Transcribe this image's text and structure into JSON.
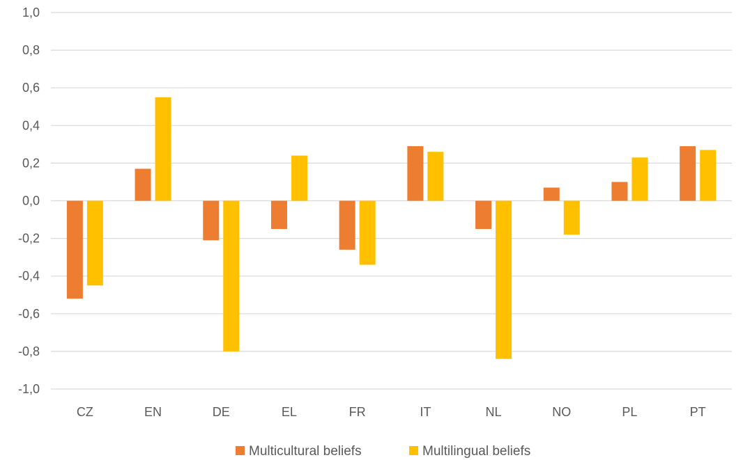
{
  "chart_data": {
    "type": "bar",
    "categories": [
      "CZ",
      "EN",
      "DE",
      "EL",
      "FR",
      "IT",
      "NL",
      "NO",
      "PL",
      "PT"
    ],
    "series": [
      {
        "name": "Multicultural beliefs",
        "color": "#ED7D31",
        "values": [
          -0.52,
          0.17,
          -0.21,
          -0.15,
          -0.26,
          0.29,
          -0.15,
          0.07,
          0.1,
          0.29
        ]
      },
      {
        "name": "Multilingual beliefs",
        "color": "#FFC000",
        "values": [
          -0.45,
          0.55,
          -0.8,
          0.24,
          -0.34,
          0.26,
          -0.84,
          -0.18,
          0.23,
          0.27
        ]
      }
    ],
    "yticks": [
      "1,0",
      "0,8",
      "0,6",
      "0,4",
      "0,2",
      "0,0",
      "-0,2",
      "-0,4",
      "-0,6",
      "-0,8",
      "-1,0"
    ],
    "ylim": [
      -1.0,
      1.0
    ],
    "grid": true,
    "legend": "bottom"
  }
}
